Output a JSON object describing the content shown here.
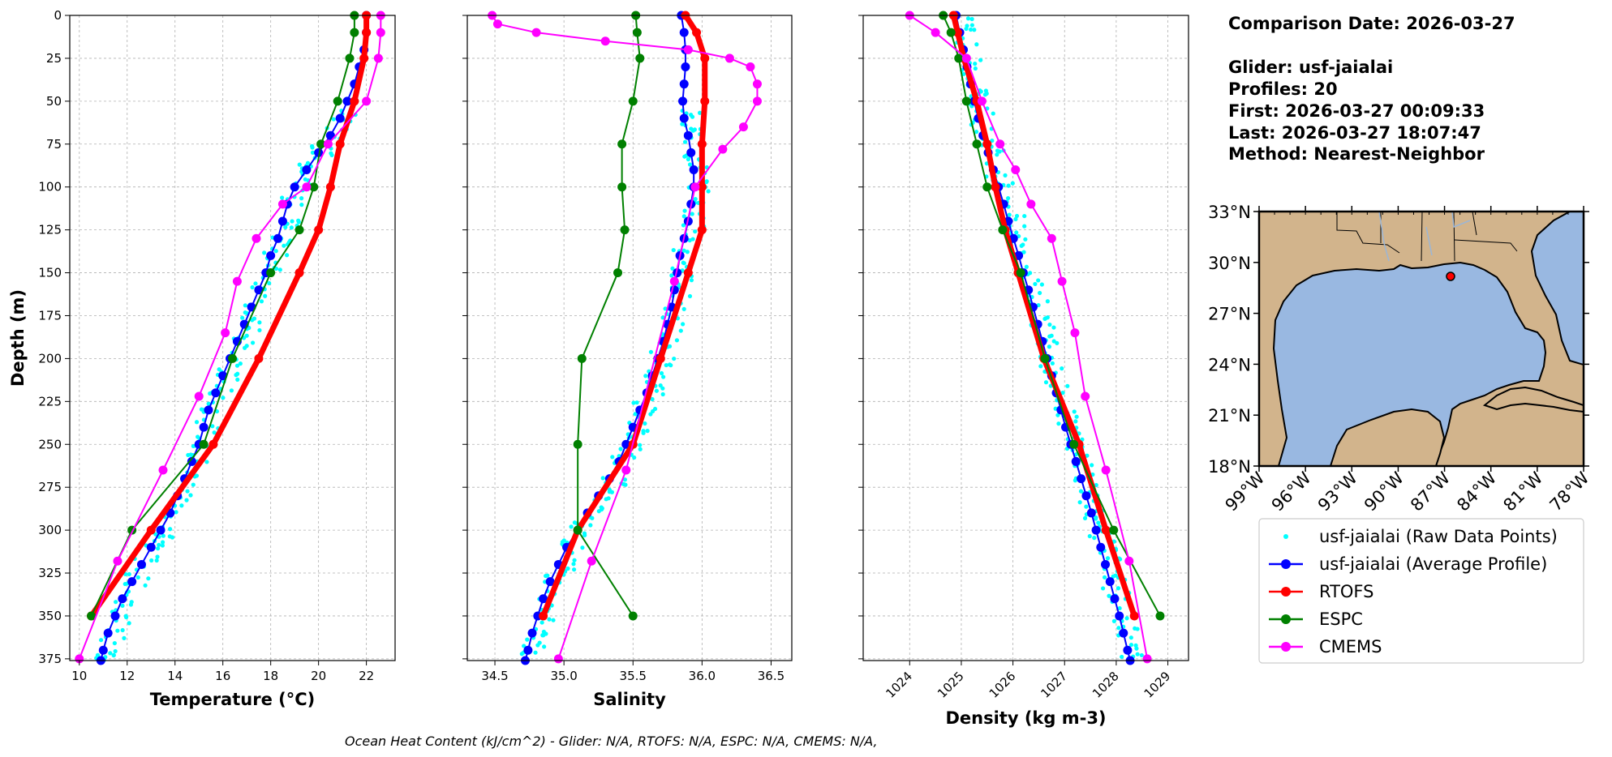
{
  "info": {
    "title": "Comparison Date: 2026-03-27",
    "lines": [
      "Glider: usf-jaialai",
      "Profiles: 20",
      "First: 2026-03-27 00:09:33",
      "Last: 2026-03-27 18:07:47",
      "Method: Nearest-Neighbor"
    ]
  },
  "footer": "Ocean Heat Content (kJ/cm^2) - Glider: N/A,  RTOFS: N/A,  ESPC: N/A,  CMEMS: N/A,",
  "legend": [
    {
      "label": "usf-jaialai (Raw Data Points)",
      "color": "#00ffff",
      "style": "dots"
    },
    {
      "label": "usf-jaialai (Average Profile)",
      "color": "#0000ff",
      "style": "line-marker"
    },
    {
      "label": "RTOFS",
      "color": "#ff0000",
      "style": "line-marker"
    },
    {
      "label": "ESPC",
      "color": "#008000",
      "style": "line-marker"
    },
    {
      "label": "CMEMS",
      "color": "#ff00ff",
      "style": "line-marker"
    }
  ],
  "map": {
    "lat_ticks": [
      "33°N",
      "30°N",
      "27°N",
      "24°N",
      "21°N",
      "18°N"
    ],
    "lon_ticks": [
      "99°W",
      "96°W",
      "93°W",
      "90°W",
      "87°W",
      "84°W",
      "81°W",
      "78°W"
    ],
    "extent": {
      "lon": [
        -99,
        -78
      ],
      "lat": [
        18,
        33
      ]
    },
    "land_color": "#d2b48c",
    "ocean_color": "#99b8e1",
    "glider_location": {
      "lon": -86.7,
      "lat": 29.4
    }
  },
  "chart_data": [
    {
      "type": "line",
      "title": "",
      "xlabel": "Temperature (°C)",
      "ylabel": "Depth (m)",
      "xlim": [
        9.6,
        23.2
      ],
      "ylim": [
        376,
        0
      ],
      "x_ticks": [
        "10",
        "12",
        "14",
        "16",
        "18",
        "20",
        "22"
      ],
      "y_ticks": [
        "0",
        "25",
        "50",
        "75",
        "100",
        "125",
        "150",
        "175",
        "200",
        "225",
        "250",
        "275",
        "300",
        "325",
        "350",
        "375"
      ],
      "grid": true,
      "series": [
        {
          "name": "usf-jaialai (Average Profile)",
          "color": "#0000ff",
          "depth": [
            0,
            10,
            20,
            30,
            40,
            50,
            60,
            70,
            80,
            90,
            100,
            110,
            120,
            130,
            140,
            150,
            160,
            170,
            180,
            190,
            200,
            210,
            220,
            230,
            240,
            250,
            260,
            270,
            280,
            290,
            300,
            310,
            320,
            330,
            340,
            350,
            360,
            370,
            376
          ],
          "values": [
            22.0,
            22.0,
            21.9,
            21.7,
            21.5,
            21.2,
            20.9,
            20.5,
            20.0,
            19.5,
            19.0,
            18.7,
            18.5,
            18.3,
            18.0,
            17.8,
            17.5,
            17.2,
            16.9,
            16.6,
            16.3,
            16.0,
            15.7,
            15.4,
            15.2,
            15.0,
            14.7,
            14.4,
            14.1,
            13.8,
            13.4,
            13.0,
            12.6,
            12.2,
            11.8,
            11.5,
            11.2,
            11.0,
            10.9
          ]
        },
        {
          "name": "RTOFS",
          "color": "#ff0000",
          "depth": [
            0,
            10,
            25,
            50,
            75,
            100,
            125,
            150,
            200,
            250,
            300,
            350
          ],
          "values": [
            22.0,
            22.0,
            21.9,
            21.5,
            20.9,
            20.5,
            20.0,
            19.2,
            17.5,
            15.6,
            13.0,
            10.5
          ]
        },
        {
          "name": "ESPC",
          "color": "#008000",
          "depth": [
            0,
            10,
            25,
            50,
            75,
            100,
            125,
            150,
            200,
            250,
            300,
            350
          ],
          "values": [
            21.5,
            21.5,
            21.3,
            20.8,
            20.1,
            19.8,
            19.2,
            18.0,
            16.4,
            15.2,
            12.2,
            10.5
          ]
        },
        {
          "name": "CMEMS",
          "color": "#ff00ff",
          "depth": [
            0,
            10,
            25,
            50,
            75,
            100,
            110,
            130,
            155,
            185,
            222,
            265,
            318,
            375
          ],
          "values": [
            22.6,
            22.6,
            22.5,
            22.0,
            20.4,
            19.5,
            18.5,
            17.4,
            16.6,
            16.1,
            15.0,
            13.5,
            11.6,
            10.0
          ]
        }
      ]
    },
    {
      "type": "line",
      "title": "",
      "xlabel": "Salinity",
      "ylabel": "",
      "xlim": [
        34.3,
        36.65
      ],
      "ylim": [
        376,
        0
      ],
      "x_ticks": [
        "34.5",
        "35.0",
        "35.5",
        "36.0",
        "36.5"
      ],
      "grid": true,
      "series": [
        {
          "name": "usf-jaialai (Average Profile)",
          "color": "#0000ff",
          "depth": [
            0,
            10,
            20,
            30,
            40,
            50,
            60,
            70,
            80,
            90,
            100,
            110,
            120,
            130,
            140,
            150,
            160,
            170,
            180,
            190,
            200,
            210,
            220,
            230,
            240,
            250,
            260,
            270,
            280,
            290,
            300,
            310,
            320,
            330,
            340,
            350,
            360,
            370,
            376
          ],
          "values": [
            35.85,
            35.87,
            35.88,
            35.88,
            35.87,
            35.86,
            35.87,
            35.9,
            35.92,
            35.94,
            35.94,
            35.92,
            35.9,
            35.87,
            35.84,
            35.82,
            35.8,
            35.78,
            35.75,
            35.72,
            35.68,
            35.64,
            35.6,
            35.55,
            35.5,
            35.45,
            35.4,
            35.33,
            35.25,
            35.17,
            35.1,
            35.02,
            34.96,
            34.9,
            34.85,
            34.81,
            34.77,
            34.74,
            34.72
          ]
        },
        {
          "name": "RTOFS",
          "color": "#ff0000",
          "depth": [
            0,
            10,
            25,
            50,
            75,
            100,
            125,
            150,
            200,
            250,
            300,
            350
          ],
          "values": [
            35.88,
            35.96,
            36.02,
            36.02,
            36.0,
            36.0,
            36.0,
            35.9,
            35.7,
            35.5,
            35.1,
            34.85
          ]
        },
        {
          "name": "ESPC",
          "color": "#008000",
          "depth": [
            0,
            10,
            25,
            50,
            75,
            100,
            125,
            150,
            200,
            250,
            300,
            350
          ],
          "values": [
            35.52,
            35.53,
            35.55,
            35.5,
            35.42,
            35.42,
            35.44,
            35.39,
            35.13,
            35.1,
            35.1,
            35.5
          ]
        },
        {
          "name": "CMEMS",
          "color": "#ff00ff",
          "depth": [
            0,
            5,
            10,
            15,
            20,
            25,
            30,
            40,
            50,
            65,
            78,
            100,
            155,
            265,
            318,
            375
          ],
          "values": [
            34.48,
            34.52,
            34.8,
            35.3,
            35.9,
            36.2,
            36.35,
            36.4,
            36.4,
            36.3,
            36.15,
            35.95,
            35.8,
            35.45,
            35.2,
            34.96
          ]
        }
      ]
    },
    {
      "type": "line",
      "title": "",
      "xlabel": "Density (kg m-3)",
      "ylabel": "",
      "xlim": [
        1023.1,
        1029.4
      ],
      "ylim": [
        376,
        0
      ],
      "x_ticks": [
        "1024",
        "1025",
        "1026",
        "1027",
        "1028",
        "1029"
      ],
      "grid": true,
      "series": [
        {
          "name": "usf-jaialai (Average Profile)",
          "color": "#0000ff",
          "depth": [
            0,
            10,
            20,
            30,
            40,
            50,
            60,
            70,
            80,
            90,
            100,
            110,
            120,
            130,
            140,
            150,
            160,
            170,
            180,
            190,
            200,
            210,
            220,
            230,
            240,
            250,
            260,
            270,
            280,
            290,
            300,
            310,
            320,
            330,
            340,
            350,
            360,
            370,
            376
          ],
          "values": [
            1024.9,
            1024.97,
            1025.04,
            1025.11,
            1025.18,
            1025.25,
            1025.33,
            1025.42,
            1025.52,
            1025.62,
            1025.72,
            1025.82,
            1025.91,
            1026.01,
            1026.11,
            1026.2,
            1026.3,
            1026.39,
            1026.48,
            1026.57,
            1026.66,
            1026.75,
            1026.84,
            1026.93,
            1027.02,
            1027.12,
            1027.22,
            1027.32,
            1027.42,
            1027.52,
            1027.61,
            1027.7,
            1027.79,
            1027.88,
            1027.97,
            1028.06,
            1028.14,
            1028.22,
            1028.27
          ]
        },
        {
          "name": "RTOFS",
          "color": "#ff0000",
          "depth": [
            0,
            10,
            25,
            50,
            75,
            100,
            125,
            150,
            200,
            250,
            300,
            350
          ],
          "values": [
            1024.85,
            1024.93,
            1025.05,
            1025.3,
            1025.5,
            1025.66,
            1025.85,
            1026.1,
            1026.6,
            1027.28,
            1027.8,
            1028.35
          ]
        },
        {
          "name": "ESPC",
          "color": "#008000",
          "depth": [
            0,
            10,
            25,
            50,
            75,
            100,
            125,
            150,
            200,
            250,
            300,
            350
          ],
          "values": [
            1024.65,
            1024.8,
            1024.95,
            1025.1,
            1025.3,
            1025.5,
            1025.8,
            1026.15,
            1026.62,
            1027.18,
            1027.95,
            1028.85
          ]
        },
        {
          "name": "CMEMS",
          "color": "#ff00ff",
          "depth": [
            0,
            10,
            25,
            50,
            75,
            90,
            110,
            130,
            155,
            185,
            222,
            265,
            318,
            375
          ],
          "values": [
            1024.0,
            1024.5,
            1025.1,
            1025.4,
            1025.75,
            1026.05,
            1026.35,
            1026.75,
            1026.95,
            1027.2,
            1027.4,
            1027.8,
            1028.25,
            1028.6
          ]
        }
      ]
    }
  ]
}
